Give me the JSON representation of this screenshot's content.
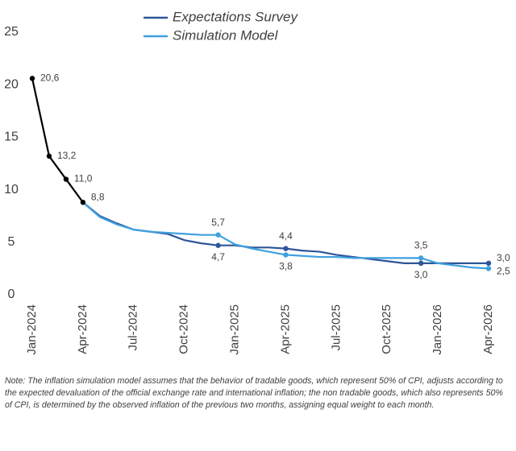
{
  "chart_data": {
    "type": "line",
    "categories": [
      "Jan-2024",
      null,
      null,
      "Apr-2024",
      null,
      null,
      "Jul-2024",
      null,
      null,
      "Oct-2024",
      null,
      null,
      "Jan-2025",
      null,
      null,
      "Apr-2025",
      null,
      null,
      "Jul-2025",
      null,
      null,
      "Oct-2025",
      null,
      null,
      "Jan-2026",
      null,
      null,
      "Apr-2026"
    ],
    "series": [
      {
        "color": "#000000",
        "values": [
          20.6,
          13.2,
          11.0,
          8.8,
          null,
          null,
          null,
          null,
          null,
          null,
          null,
          null,
          null,
          null,
          null,
          null,
          null,
          null,
          null,
          null,
          null,
          null,
          null,
          null,
          null,
          null,
          null,
          null
        ],
        "value_labels": [
          "20,6",
          "13,2",
          "11,0",
          "8,8",
          null,
          null,
          null,
          null,
          null,
          null,
          null,
          null,
          null,
          null,
          null,
          null,
          null,
          null,
          null,
          null,
          null,
          null,
          null,
          null,
          null,
          null,
          null,
          null
        ]
      },
      {
        "name": "Expectations Survey",
        "color": "#2e5597",
        "values": [
          null,
          null,
          null,
          8.8,
          7.5,
          6.8,
          6.2,
          6.0,
          5.8,
          5.2,
          4.9,
          4.7,
          4.7,
          4.5,
          4.5,
          4.4,
          4.2,
          4.1,
          3.8,
          3.6,
          3.4,
          3.2,
          3.0,
          3.0,
          3.0,
          3.0,
          3.0,
          3.0
        ],
        "value_labels": [
          null,
          null,
          null,
          null,
          null,
          null,
          null,
          null,
          null,
          null,
          null,
          "4,7",
          null,
          null,
          null,
          "4,4",
          null,
          null,
          null,
          null,
          null,
          null,
          null,
          "3,0",
          null,
          null,
          null,
          "3,0"
        ]
      },
      {
        "name": "Simulation Model",
        "color": "#3fa0e0",
        "values": [
          null,
          null,
          null,
          8.8,
          7.4,
          6.7,
          6.2,
          6.0,
          5.9,
          5.8,
          5.7,
          5.7,
          4.8,
          4.4,
          4.1,
          3.8,
          3.7,
          3.6,
          3.6,
          3.5,
          3.5,
          3.5,
          3.5,
          3.5,
          3.0,
          2.8,
          2.6,
          2.5
        ],
        "value_labels": [
          null,
          null,
          null,
          null,
          null,
          null,
          null,
          null,
          null,
          null,
          null,
          "5,7",
          null,
          null,
          null,
          "3,8",
          null,
          null,
          null,
          null,
          null,
          null,
          null,
          "3,5",
          null,
          null,
          null,
          "2,5"
        ]
      }
    ],
    "ylim": [
      0,
      25
    ],
    "yticks": [
      0,
      5,
      10,
      15,
      20,
      25
    ],
    "grid": false,
    "note": "Note: The inflation simulation model assumes that the behavior of tradable goods, which represent 50% of CPI, adjusts according to the expected devaluation of the official exchange rate and international inflation; the non tradable goods, which also represents 50% of CPI, is determined by the observed inflation of the previous two months, assigning equal weight to each month."
  }
}
